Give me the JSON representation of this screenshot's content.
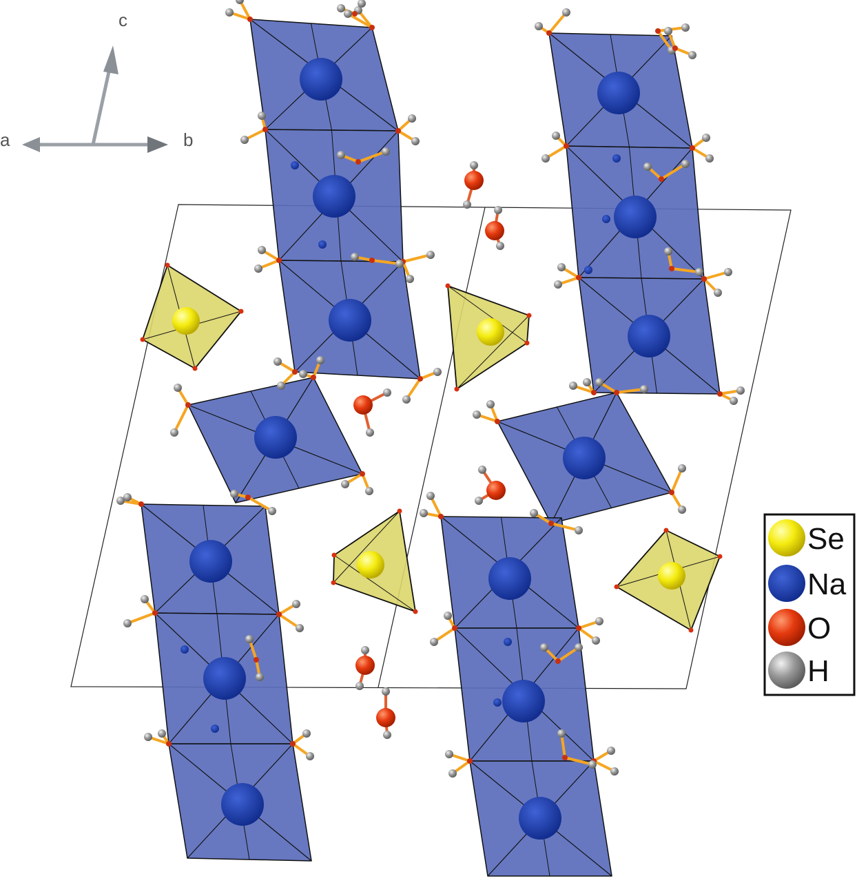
{
  "axes": {
    "a_label": "a",
    "b_label": "b",
    "c_label": "c"
  },
  "legend": {
    "items": [
      {
        "label": "Se",
        "color": "#f2e600",
        "icon": "yellow-sphere"
      },
      {
        "label": "Na",
        "color": "#1a3ca8",
        "icon": "blue-sphere"
      },
      {
        "label": "O",
        "color": "#e63a0f",
        "icon": "red-sphere"
      },
      {
        "label": "H",
        "color": "#9a9a9a",
        "icon": "grey-sphere"
      }
    ]
  },
  "colors": {
    "na_octahedron": "#5a6cbc",
    "se_tetrahedron": "#dcd66c",
    "bond": "#f5a623",
    "unit_cell": "#222222",
    "axis_arrow": "#9aa0a6"
  }
}
